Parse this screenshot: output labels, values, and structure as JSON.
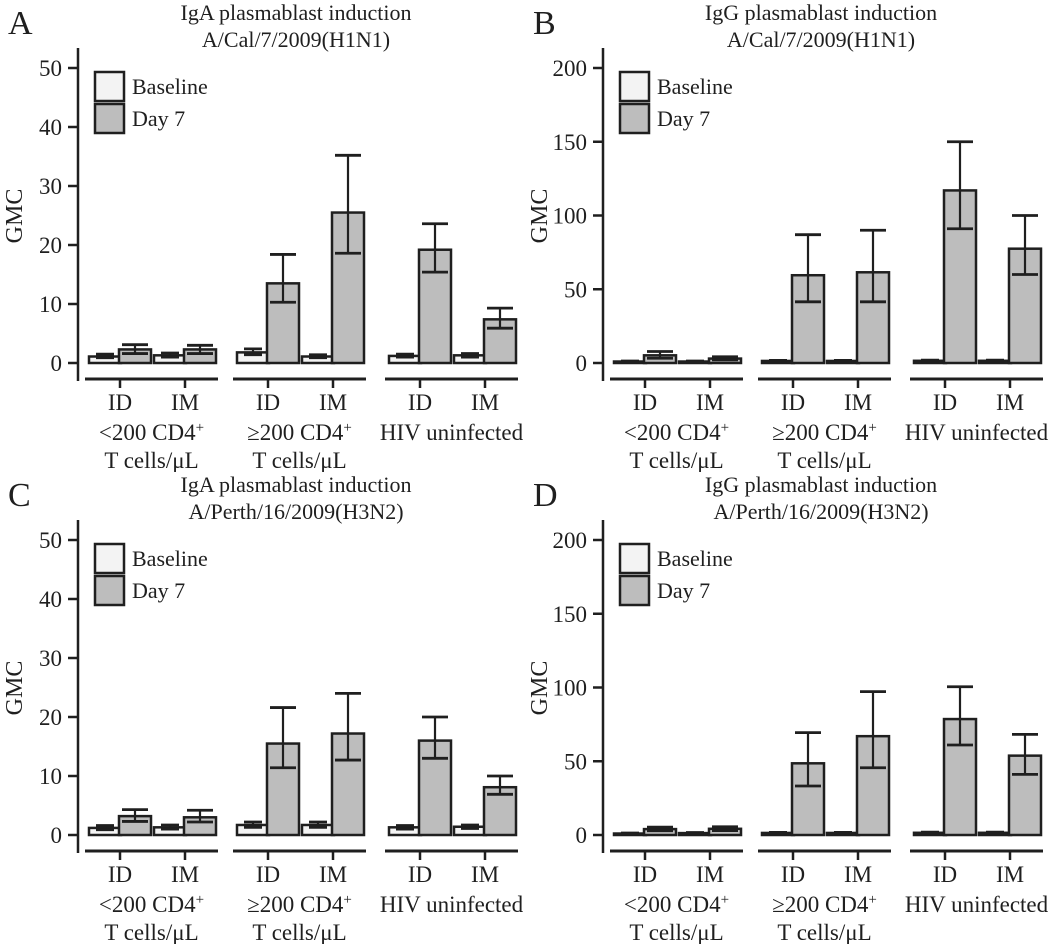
{
  "figure": {
    "background": "#ffffff",
    "colors": {
      "stroke": "#1f1f1f",
      "text": "#1f1f1f",
      "baseline_fill": "#f3f3f3",
      "day7_fill": "#bdbdbd"
    },
    "legend": {
      "baseline_label": "Baseline",
      "day7_label": "Day 7"
    }
  },
  "chart_data": [
    {
      "type": "bar",
      "panel_letter": "A",
      "title": "IgA plasmablast induction",
      "subtitle": "A/Cal/7/2009(H1N1)",
      "ylabel": "GMC",
      "ylim": [
        0,
        50
      ],
      "yticks": [
        0,
        10,
        20,
        30,
        40,
        50
      ],
      "legend": [
        "Baseline",
        "Day 7"
      ],
      "legend_position": "top-left",
      "grid": false,
      "groups": [
        {
          "label_main": "<200 CD4",
          "label_sup": "+",
          "label_line2": "T cells/μL",
          "bars": [
            {
              "x_label": "ID",
              "baseline": {
                "value": 1.1,
                "ci": [
                  0.9,
                  1.5
                ]
              },
              "day7": {
                "value": 2.3,
                "ci": [
                  1.6,
                  3.1
                ]
              }
            },
            {
              "x_label": "IM",
              "baseline": {
                "value": 1.3,
                "ci": [
                  1.0,
                  1.7
                ]
              },
              "day7": {
                "value": 2.3,
                "ci": [
                  1.6,
                  3.0
                ]
              }
            }
          ]
        },
        {
          "label_main": "≥200 CD4",
          "label_sup": "+",
          "label_line2": "T cells/μL",
          "bars": [
            {
              "x_label": "ID",
              "baseline": {
                "value": 1.8,
                "ci": [
                  1.4,
                  2.4
                ]
              },
              "day7": {
                "value": 13.5,
                "ci": [
                  10.3,
                  18.4
                ]
              }
            },
            {
              "x_label": "IM",
              "baseline": {
                "value": 1.1,
                "ci": [
                  0.9,
                  1.4
                ]
              },
              "day7": {
                "value": 25.5,
                "ci": [
                  18.6,
                  35.2
                ]
              }
            }
          ]
        },
        {
          "label_main": "HIV uninfected",
          "label_sup": "",
          "label_line2": "",
          "bars": [
            {
              "x_label": "ID",
              "baseline": {
                "value": 1.2,
                "ci": [
                  1.0,
                  1.5
                ]
              },
              "day7": {
                "value": 19.2,
                "ci": [
                  15.4,
                  23.6
                ]
              }
            },
            {
              "x_label": "IM",
              "baseline": {
                "value": 1.3,
                "ci": [
                  1.0,
                  1.6
                ]
              },
              "day7": {
                "value": 7.4,
                "ci": [
                  5.9,
                  9.3
                ]
              }
            }
          ]
        }
      ]
    },
    {
      "type": "bar",
      "panel_letter": "B",
      "title": "IgG plasmablast induction",
      "subtitle": "A/Cal/7/2009(H1N1)",
      "ylabel": "GMC",
      "ylim": [
        0,
        200
      ],
      "yticks": [
        0,
        50,
        100,
        150,
        200
      ],
      "legend": [
        "Baseline",
        "Day 7"
      ],
      "legend_position": "top-left",
      "grid": false,
      "groups": [
        {
          "label_main": "<200 CD4",
          "label_sup": "+",
          "label_line2": "T cells/μL",
          "bars": [
            {
              "x_label": "ID",
              "baseline": {
                "value": 1.0,
                "ci": [
                  0.8,
                  1.3
                ]
              },
              "day7": {
                "value": 5.2,
                "ci": [
                  3.2,
                  7.8
                ]
              }
            },
            {
              "x_label": "IM",
              "baseline": {
                "value": 1.0,
                "ci": [
                  0.8,
                  1.3
                ]
              },
              "day7": {
                "value": 3.0,
                "ci": [
                  2.1,
                  4.2
                ]
              }
            }
          ]
        },
        {
          "label_main": "≥200 CD4",
          "label_sup": "+",
          "label_line2": "T cells/μL",
          "bars": [
            {
              "x_label": "ID",
              "baseline": {
                "value": 1.4,
                "ci": [
                  1.1,
                  1.8
                ]
              },
              "day7": {
                "value": 59.5,
                "ci": [
                  41.5,
                  87.0
                ]
              }
            },
            {
              "x_label": "IM",
              "baseline": {
                "value": 1.4,
                "ci": [
                  1.1,
                  1.8
                ]
              },
              "day7": {
                "value": 61.5,
                "ci": [
                  41.5,
                  90.0
                ]
              }
            }
          ]
        },
        {
          "label_main": "HIV uninfected",
          "label_sup": "",
          "label_line2": "",
          "bars": [
            {
              "x_label": "ID",
              "baseline": {
                "value": 1.5,
                "ci": [
                  1.2,
                  1.9
                ]
              },
              "day7": {
                "value": 117.0,
                "ci": [
                  91.0,
                  150.0
                ]
              }
            },
            {
              "x_label": "IM",
              "baseline": {
                "value": 1.5,
                "ci": [
                  1.2,
                  1.9
                ]
              },
              "day7": {
                "value": 77.5,
                "ci": [
                  60.0,
                  100.0
                ]
              }
            }
          ]
        }
      ]
    },
    {
      "type": "bar",
      "panel_letter": "C",
      "title": "IgA plasmablast induction",
      "subtitle": "A/Perth/16/2009(H3N2)",
      "ylabel": "GMC",
      "ylim": [
        0,
        50
      ],
      "yticks": [
        0,
        10,
        20,
        30,
        40,
        50
      ],
      "legend": [
        "Baseline",
        "Day 7"
      ],
      "legend_position": "top-left",
      "grid": false,
      "groups": [
        {
          "label_main": "<200 CD4",
          "label_sup": "+",
          "label_line2": "T cells/μL",
          "bars": [
            {
              "x_label": "ID",
              "baseline": {
                "value": 1.2,
                "ci": [
                  0.9,
                  1.6
                ]
              },
              "day7": {
                "value": 3.2,
                "ci": [
                  2.3,
                  4.3
                ]
              }
            },
            {
              "x_label": "IM",
              "baseline": {
                "value": 1.3,
                "ci": [
                  1.0,
                  1.7
                ]
              },
              "day7": {
                "value": 3.0,
                "ci": [
                  2.2,
                  4.2
                ]
              }
            }
          ]
        },
        {
          "label_main": "≥200 CD4",
          "label_sup": "+",
          "label_line2": "T cells/μL",
          "bars": [
            {
              "x_label": "ID",
              "baseline": {
                "value": 1.7,
                "ci": [
                  1.3,
                  2.2
                ]
              },
              "day7": {
                "value": 15.5,
                "ci": [
                  11.4,
                  21.6
                ]
              }
            },
            {
              "x_label": "IM",
              "baseline": {
                "value": 1.7,
                "ci": [
                  1.3,
                  2.2
                ]
              },
              "day7": {
                "value": 17.2,
                "ci": [
                  12.7,
                  24.0
                ]
              }
            }
          ]
        },
        {
          "label_main": "HIV uninfected",
          "label_sup": "",
          "label_line2": "",
          "bars": [
            {
              "x_label": "ID",
              "baseline": {
                "value": 1.3,
                "ci": [
                  1.0,
                  1.6
                ]
              },
              "day7": {
                "value": 16.0,
                "ci": [
                  13.0,
                  20.0
                ]
              }
            },
            {
              "x_label": "IM",
              "baseline": {
                "value": 1.4,
                "ci": [
                  1.1,
                  1.7
                ]
              },
              "day7": {
                "value": 8.1,
                "ci": [
                  6.9,
                  10.0
                ]
              }
            }
          ]
        }
      ]
    },
    {
      "type": "bar",
      "panel_letter": "D",
      "title": "IgG plasmablast induction",
      "subtitle": "A/Perth/16/2009(H3N2)",
      "ylabel": "GMC",
      "ylim": [
        0,
        200
      ],
      "yticks": [
        0,
        50,
        100,
        150,
        200
      ],
      "legend": [
        "Baseline",
        "Day 7"
      ],
      "legend_position": "top-left",
      "grid": false,
      "groups": [
        {
          "label_main": "<200 CD4",
          "label_sup": "+",
          "label_line2": "T cells/μL",
          "bars": [
            {
              "x_label": "ID",
              "baseline": {
                "value": 1.0,
                "ci": [
                  0.8,
                  1.3
                ]
              },
              "day7": {
                "value": 4.0,
                "ci": [
                  2.9,
                  5.3
                ]
              }
            },
            {
              "x_label": "IM",
              "baseline": {
                "value": 1.3,
                "ci": [
                  1.0,
                  1.7
                ]
              },
              "day7": {
                "value": 4.2,
                "ci": [
                  3.0,
                  5.6
                ]
              }
            }
          ]
        },
        {
          "label_main": "≥200 CD4",
          "label_sup": "+",
          "label_line2": "T cells/μL",
          "bars": [
            {
              "x_label": "ID",
              "baseline": {
                "value": 1.4,
                "ci": [
                  1.1,
                  1.8
                ]
              },
              "day7": {
                "value": 48.6,
                "ci": [
                  33.2,
                  69.4
                ]
              }
            },
            {
              "x_label": "IM",
              "baseline": {
                "value": 1.4,
                "ci": [
                  1.1,
                  1.8
                ]
              },
              "day7": {
                "value": 67.0,
                "ci": [
                  45.6,
                  97.2
                ]
              }
            }
          ]
        },
        {
          "label_main": "HIV uninfected",
          "label_sup": "",
          "label_line2": "",
          "bars": [
            {
              "x_label": "ID",
              "baseline": {
                "value": 1.5,
                "ci": [
                  1.2,
                  1.9
                ]
              },
              "day7": {
                "value": 78.6,
                "ci": [
                  61.0,
                  100.5
                ]
              }
            },
            {
              "x_label": "IM",
              "baseline": {
                "value": 1.5,
                "ci": [
                  1.2,
                  1.9
                ]
              },
              "day7": {
                "value": 53.8,
                "ci": [
                  41.1,
                  68.2
                ]
              }
            }
          ]
        }
      ]
    }
  ]
}
